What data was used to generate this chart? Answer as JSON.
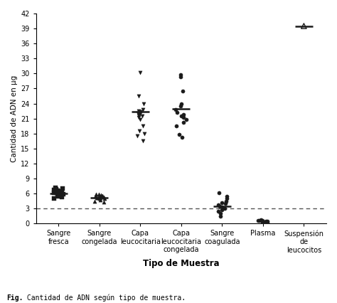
{
  "categories": [
    "Sangre\nfresca",
    "Sangre\ncongelada",
    "Capa\nleucocitaria",
    "Capa\nleucocitaria\ncongelada",
    "Sangre\ncoagulada",
    "Plasma",
    "Suspensión\nde\nleucocitos"
  ],
  "ylabel": "Cantidad de ADN en μg",
  "xlabel": "Tipo de Muestra",
  "caption_bold": "Fig.",
  "caption_rest": " Cantidad de ADN según tipo de muestra.",
  "ylim": [
    0,
    42
  ],
  "yticks": [
    0,
    3,
    6,
    9,
    12,
    15,
    18,
    21,
    24,
    27,
    30,
    33,
    36,
    39,
    42
  ],
  "dotted_line_y": 3,
  "color": "#1a1a1a",
  "group_data": [
    {
      "name": "Sangre fresca",
      "x": 0,
      "marker": "s",
      "filled": true,
      "points": [
        5.0,
        5.3,
        5.5,
        5.7,
        5.8,
        6.0,
        6.0,
        6.1,
        6.2,
        6.3,
        6.4,
        6.5,
        6.6,
        6.7,
        6.8,
        7.0,
        7.2,
        5.9
      ],
      "mean": 6.0
    },
    {
      "name": "Sangre congelada",
      "x": 1,
      "marker": "^",
      "filled": true,
      "points": [
        4.3,
        4.5,
        4.8,
        5.0,
        5.1,
        5.2,
        5.3,
        5.4,
        5.5,
        5.6,
        5.7,
        5.8,
        5.9,
        5.0,
        5.1
      ],
      "mean": 5.2
    },
    {
      "name": "Capa leucocitaria",
      "x": 2,
      "marker": "v",
      "filled": true,
      "points": [
        30.2,
        25.5,
        24.0,
        22.8,
        22.5,
        22.3,
        22.1,
        22.0,
        21.7,
        21.5,
        21.2,
        20.8,
        19.5,
        18.5,
        18.0,
        17.5,
        16.5
      ],
      "mean": 22.3
    },
    {
      "name": "Capa leucocitaria congelada",
      "x": 3,
      "marker": "o",
      "filled": true,
      "points": [
        29.8,
        29.4,
        26.5,
        24.0,
        23.5,
        22.8,
        22.2,
        21.8,
        21.5,
        21.2,
        20.8,
        20.2,
        19.5,
        17.8,
        17.2
      ],
      "mean": 23.0
    },
    {
      "name": "Sangre coagulada",
      "x": 4,
      "marker": "o",
      "filled": true,
      "points": [
        6.2,
        5.5,
        5.0,
        4.5,
        4.2,
        4.0,
        3.8,
        3.5,
        3.3,
        3.0,
        2.8,
        2.5,
        2.0,
        1.5
      ],
      "mean": 3.5
    },
    {
      "name": "Plasma",
      "x": 5,
      "marker": "o",
      "filled": true,
      "points": [
        0.8,
        0.65,
        0.55,
        0.5,
        0.45,
        0.38,
        0.32,
        0.28,
        0.25,
        0.22,
        0.2,
        0.18,
        0.5,
        0.6
      ],
      "mean": null
    },
    {
      "name": "Suspensión de leucocitos",
      "x": 6,
      "marker": "^",
      "filled": false,
      "points": [
        39.5
      ],
      "mean": 39.5,
      "errorbar": null
    }
  ]
}
